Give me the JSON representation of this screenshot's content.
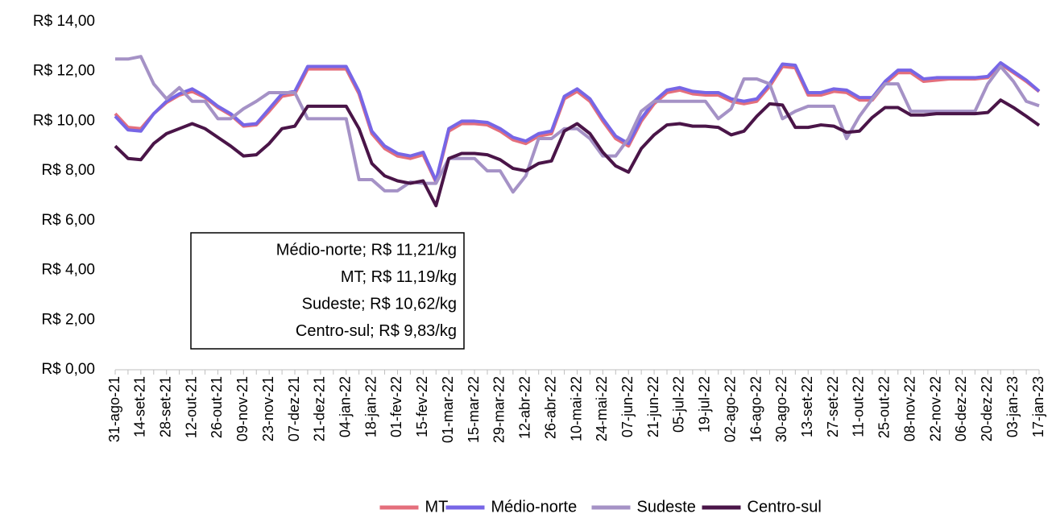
{
  "chart_data": {
    "type": "line",
    "categories": [
      "31-ago-21",
      null,
      "14-set-21",
      null,
      "28-set-21",
      null,
      "12-out-21",
      null,
      "26-out-21",
      null,
      "09-nov-21",
      null,
      "23-nov-21",
      null,
      "07-dez-21",
      null,
      "21-dez-21",
      null,
      "04-jan-22",
      null,
      "18-jan-22",
      null,
      "01-fev-22",
      null,
      "15-fev-22",
      null,
      "01-mar-22",
      null,
      "15-mar-22",
      null,
      "29-mar-22",
      null,
      "12-abr-22",
      null,
      "26-abr-22",
      null,
      "10-mai-22",
      null,
      "24-mai-22",
      null,
      "07-jun-22",
      null,
      "21-jun-22",
      null,
      "05-jul-22",
      null,
      "19-jul-22",
      null,
      "02-ago-22",
      null,
      "16-ago-22",
      null,
      "30-ago-22",
      null,
      "13-set-22",
      null,
      "27-set-22",
      null,
      "11-out-22",
      null,
      "25-out-22",
      null,
      "08-nov-22",
      null,
      "22-nov-22",
      null,
      "06-dez-22",
      null,
      "20-dez-22",
      null,
      "03-jan-23",
      null,
      "17-jan-23"
    ],
    "series": [
      {
        "name": "MT",
        "color": "#e46f7c",
        "values": [
          10.3,
          9.75,
          9.7,
          10.3,
          10.75,
          11.05,
          11.2,
          10.95,
          10.55,
          10.25,
          9.8,
          9.85,
          10.4,
          11.0,
          11.1,
          12.1,
          12.1,
          12.1,
          12.1,
          11.1,
          9.5,
          8.9,
          8.6,
          8.5,
          8.65,
          7.55,
          9.6,
          9.9,
          9.9,
          9.85,
          9.6,
          9.25,
          9.1,
          9.4,
          9.5,
          10.9,
          11.2,
          10.8,
          10.0,
          9.3,
          9.0,
          10.0,
          10.7,
          11.15,
          11.25,
          11.1,
          11.05,
          11.05,
          10.8,
          10.7,
          10.8,
          11.4,
          12.2,
          12.15,
          11.05,
          11.05,
          11.2,
          11.15,
          10.85,
          10.85,
          11.5,
          11.95,
          11.95,
          11.6,
          11.65,
          11.7,
          11.7,
          11.7,
          11.75,
          12.3,
          11.95,
          11.6,
          11.19
        ]
      },
      {
        "name": "Médio-norte",
        "color": "#7766e6",
        "values": [
          10.2,
          9.65,
          9.6,
          10.3,
          10.8,
          11.1,
          11.3,
          11.0,
          10.6,
          10.3,
          9.85,
          9.9,
          10.5,
          11.1,
          11.2,
          12.2,
          12.2,
          12.2,
          12.2,
          11.2,
          9.6,
          9.0,
          8.7,
          8.6,
          8.75,
          7.6,
          9.7,
          10.0,
          10.0,
          9.95,
          9.7,
          9.35,
          9.2,
          9.5,
          9.6,
          11.0,
          11.3,
          10.9,
          10.1,
          9.4,
          9.1,
          10.1,
          10.8,
          11.25,
          11.35,
          11.2,
          11.15,
          11.15,
          10.9,
          10.8,
          10.9,
          11.5,
          12.3,
          12.25,
          11.15,
          11.15,
          11.3,
          11.25,
          10.95,
          10.95,
          11.6,
          12.05,
          12.05,
          11.7,
          11.75,
          11.75,
          11.75,
          11.75,
          11.8,
          12.35,
          12.0,
          11.65,
          11.21
        ]
      },
      {
        "name": "Sudeste",
        "color": "#a592c6",
        "values": [
          12.5,
          12.5,
          12.6,
          11.5,
          10.9,
          11.35,
          10.8,
          10.8,
          10.1,
          10.1,
          10.5,
          10.8,
          11.15,
          11.15,
          11.15,
          10.1,
          10.1,
          10.1,
          10.1,
          7.65,
          7.65,
          7.2,
          7.2,
          7.55,
          7.5,
          7.5,
          8.5,
          8.5,
          8.5,
          8.0,
          8.0,
          7.15,
          7.8,
          9.3,
          9.3,
          9.7,
          9.7,
          9.3,
          8.6,
          8.6,
          9.3,
          10.4,
          10.8,
          10.8,
          10.8,
          10.8,
          10.8,
          10.1,
          10.5,
          11.7,
          11.7,
          11.5,
          10.1,
          10.4,
          10.6,
          10.6,
          10.6,
          9.3,
          10.2,
          10.9,
          11.5,
          11.5,
          10.4,
          10.4,
          10.4,
          10.4,
          10.4,
          10.4,
          11.5,
          12.2,
          11.6,
          10.8,
          10.62
        ]
      },
      {
        "name": "Centro-sul",
        "color": "#4a1548",
        "values": [
          9.0,
          8.5,
          8.45,
          9.1,
          9.5,
          9.7,
          9.9,
          9.7,
          9.35,
          9.0,
          8.6,
          8.65,
          9.1,
          9.7,
          9.8,
          10.6,
          10.6,
          10.6,
          10.6,
          9.7,
          8.3,
          7.8,
          7.6,
          7.5,
          7.6,
          6.6,
          8.5,
          8.7,
          8.7,
          8.65,
          8.45,
          8.1,
          8.0,
          8.3,
          8.4,
          9.6,
          9.9,
          9.5,
          8.75,
          8.2,
          7.95,
          8.9,
          9.45,
          9.85,
          9.9,
          9.8,
          9.8,
          9.75,
          9.45,
          9.6,
          10.2,
          10.7,
          10.65,
          9.75,
          9.75,
          9.85,
          9.8,
          9.55,
          9.6,
          10.15,
          10.55,
          10.55,
          10.25,
          10.25,
          10.3,
          10.3,
          10.3,
          10.3,
          10.35,
          10.85,
          10.55,
          10.2,
          9.83
        ]
      }
    ],
    "ylim": [
      0,
      14
    ],
    "yticks": [
      {
        "value": 0,
        "label": "R$ 0,00"
      },
      {
        "value": 2,
        "label": "R$ 2,00"
      },
      {
        "value": 4,
        "label": "R$ 4,00"
      },
      {
        "value": 6,
        "label": "R$ 6,00"
      },
      {
        "value": 8,
        "label": "R$ 8,00"
      },
      {
        "value": 10,
        "label": "R$ 10,00"
      },
      {
        "value": 12,
        "label": "R$ 12,00"
      },
      {
        "value": 14,
        "label": "R$ 14,00"
      }
    ],
    "grid": false,
    "legend": "bottom",
    "annotation": [
      "Médio-norte; R$ 11,21/kg",
      "MT; R$ 11,19/kg",
      "Sudeste; R$ 10,62/kg",
      "Centro-sul; R$ 9,83/kg"
    ]
  }
}
